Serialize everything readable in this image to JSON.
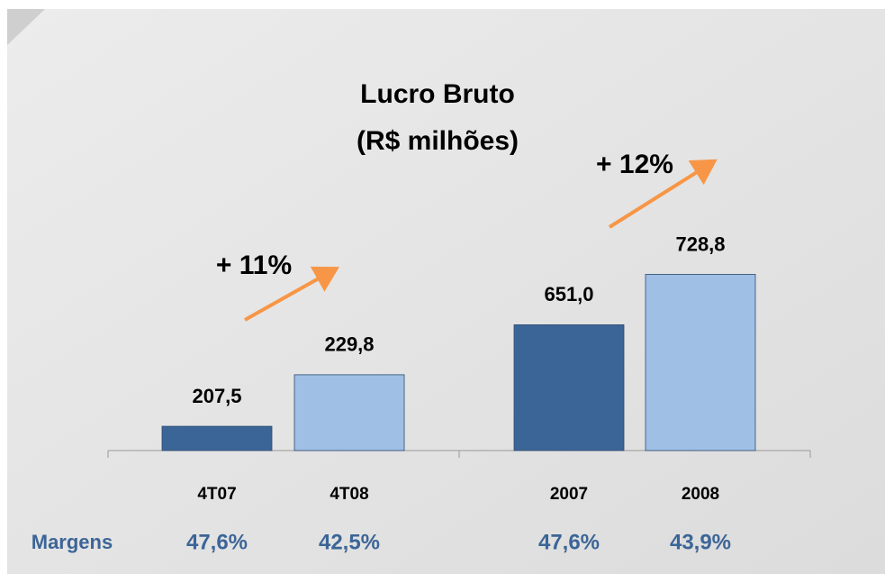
{
  "row_label": "Margens",
  "chart_data": [
    {
      "type": "bar",
      "title": "Lucro Bruto",
      "subtitle": "(R$ milhões)",
      "categories": [
        "4T07",
        "4T08"
      ],
      "values": [
        207.5,
        229.8
      ],
      "value_labels": [
        "207,5",
        "229,8"
      ],
      "colors": [
        "#3c6597",
        "#9fbfe5"
      ],
      "ylim": [
        197,
        353
      ],
      "annotation": "+ 11%",
      "margin_labels": [
        "47,6%",
        "42,5%"
      ]
    },
    {
      "type": "bar",
      "categories": [
        "2007",
        "2008"
      ],
      "values": [
        651.0,
        728.8
      ],
      "value_labels": [
        "651,0",
        "728,8"
      ],
      "colors": [
        "#3c6597",
        "#9fbfe5"
      ],
      "ylim": [
        457,
        1013
      ],
      "annotation": "+ 12%",
      "margin_labels": [
        "47,6%",
        "43,9%"
      ]
    }
  ]
}
